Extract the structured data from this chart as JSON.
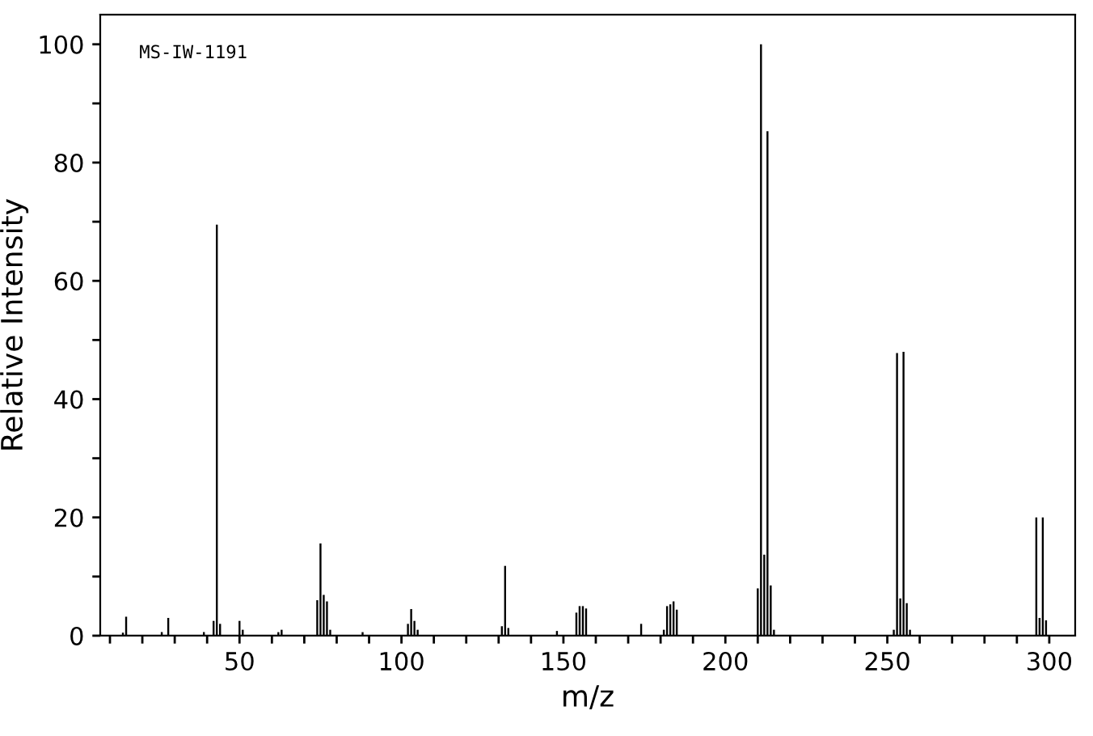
{
  "chart_data": {
    "type": "bar",
    "xlabel": "m/z",
    "ylabel": "Relative Intensity",
    "annotations": [
      "MS-IW-1191"
    ],
    "x": [
      14,
      15,
      26,
      28,
      39,
      42,
      43,
      44,
      50,
      51,
      62,
      63,
      74,
      75,
      76,
      77,
      78,
      88,
      102,
      103,
      104,
      105,
      131,
      132,
      133,
      148,
      154,
      155,
      156,
      157,
      174,
      181,
      182,
      183,
      184,
      185,
      210,
      211,
      212,
      213,
      214,
      215,
      252,
      253,
      254,
      255,
      256,
      257,
      296,
      297,
      298,
      299
    ],
    "values": [
      0.5,
      3.2,
      0.6,
      3,
      0.6,
      2.5,
      69.5,
      2,
      2.5,
      1,
      0.6,
      1,
      6,
      15.6,
      6.9,
      5.8,
      1,
      0.6,
      2,
      4.5,
      2.5,
      1,
      1.6,
      11.8,
      1.3,
      0.8,
      3.9,
      5,
      5,
      4.6,
      2,
      1,
      5,
      5.3,
      5.8,
      4.4,
      8,
      100,
      13.7,
      85.3,
      8.5,
      1,
      1,
      47.8,
      6.3,
      48,
      5.5,
      1,
      20,
      3,
      20,
      2.6
    ],
    "color": "#000000",
    "xlim": [
      7,
      308
    ],
    "ylim": [
      0,
      105
    ],
    "xticks": [
      {
        "value": 10,
        "label": null
      },
      {
        "value": 20,
        "label": null
      },
      {
        "value": 30,
        "label": null
      },
      {
        "value": 40,
        "label": null
      },
      50,
      {
        "value": 60,
        "label": null
      },
      {
        "value": 70,
        "label": null
      },
      {
        "value": 80,
        "label": null
      },
      {
        "value": 90,
        "label": null
      },
      100,
      {
        "value": 110,
        "label": null
      },
      {
        "value": 120,
        "label": null
      },
      {
        "value": 130,
        "label": null
      },
      {
        "value": 140,
        "label": null
      },
      150,
      {
        "value": 160,
        "label": null
      },
      {
        "value": 170,
        "label": null
      },
      {
        "value": 180,
        "label": null
      },
      {
        "value": 190,
        "label": null
      },
      200,
      {
        "value": 210,
        "label": null
      },
      {
        "value": 220,
        "label": null
      },
      {
        "value": 230,
        "label": null
      },
      {
        "value": 240,
        "label": null
      },
      250,
      {
        "value": 260,
        "label": null
      },
      {
        "value": 270,
        "label": null
      },
      {
        "value": 280,
        "label": null
      },
      {
        "value": 290,
        "label": null
      },
      300
    ],
    "yticks": [
      0,
      {
        "value": 10,
        "label": null
      },
      20,
      {
        "value": 30,
        "label": null
      },
      40,
      {
        "value": 50,
        "label": null
      },
      60,
      {
        "value": 70,
        "label": null
      },
      80,
      {
        "value": 90,
        "label": null
      },
      100
    ],
    "grid": false,
    "legend": false
  }
}
